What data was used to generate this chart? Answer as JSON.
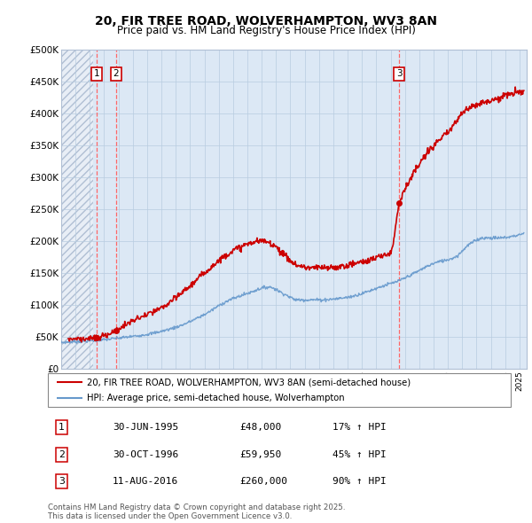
{
  "title": "20, FIR TREE ROAD, WOLVERHAMPTON, WV3 8AN",
  "subtitle": "Price paid vs. HM Land Registry's House Price Index (HPI)",
  "ylim": [
    0,
    500000
  ],
  "yticks": [
    0,
    50000,
    100000,
    150000,
    200000,
    250000,
    300000,
    350000,
    400000,
    450000,
    500000
  ],
  "ytick_labels": [
    "£0",
    "£50K",
    "£100K",
    "£150K",
    "£200K",
    "£250K",
    "£300K",
    "£350K",
    "£400K",
    "£450K",
    "£500K"
  ],
  "bg_color": "#dce8f5",
  "hatch_area_color": "#eaf0f8",
  "grid_color": "#b8cce0",
  "line_color_price": "#cc0000",
  "line_color_hpi": "#6699cc",
  "purchase_year_floats": [
    1995.5,
    1996.83,
    2016.61
  ],
  "purchase_prices": [
    48000,
    59950,
    260000
  ],
  "purchase_labels": [
    "1",
    "2",
    "3"
  ],
  "vline_color": "#ff6666",
  "legend_price_label": "20, FIR TREE ROAD, WOLVERHAMPTON, WV3 8AN (semi-detached house)",
  "legend_hpi_label": "HPI: Average price, semi-detached house, Wolverhampton",
  "table_data": [
    [
      "1",
      "30-JUN-1995",
      "£48,000",
      "17% ↑ HPI"
    ],
    [
      "2",
      "30-OCT-1996",
      "£59,950",
      "45% ↑ HPI"
    ],
    [
      "3",
      "11-AUG-2016",
      "£260,000",
      "90% ↑ HPI"
    ]
  ],
  "footer": "Contains HM Land Registry data © Crown copyright and database right 2025.\nThis data is licensed under the Open Government Licence v3.0.",
  "xlim_start": 1993.0,
  "xlim_end": 2025.5
}
